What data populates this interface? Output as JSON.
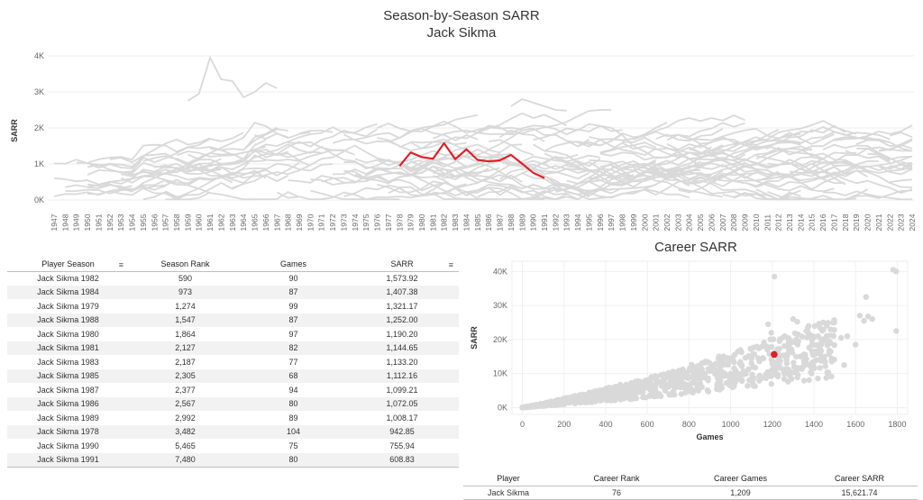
{
  "header": {
    "title": "Season-by-Season SARR",
    "subtitle": "Jack Sikma"
  },
  "line_chart": {
    "ylabel": "SARR",
    "years": [
      1947,
      1948,
      1949,
      1950,
      1951,
      1952,
      1953,
      1954,
      1955,
      1956,
      1957,
      1958,
      1959,
      1960,
      1961,
      1962,
      1963,
      1964,
      1965,
      1966,
      1967,
      1968,
      1969,
      1970,
      1971,
      1972,
      1973,
      1974,
      1975,
      1976,
      1977,
      1978,
      1979,
      1980,
      1981,
      1982,
      1983,
      1984,
      1985,
      1986,
      1987,
      1988,
      1989,
      1990,
      1991,
      1992,
      1993,
      1994,
      1995,
      1996,
      1997,
      1998,
      1999,
      2000,
      2001,
      2002,
      2003,
      2004,
      2005,
      2006,
      2007,
      2008,
      2009,
      2010,
      2011,
      2012,
      2013,
      2014,
      2015,
      2016,
      2017,
      2018,
      2019,
      2020,
      2021,
      2022,
      2023,
      2024
    ],
    "ytick_labels": [
      "0K",
      "1K",
      "2K",
      "3K",
      "4K"
    ],
    "highlight_color": "#e0202a",
    "background_color": "#d9d9d9"
  },
  "season_table": {
    "headers": [
      "Player Season",
      "Season Rank",
      "Games",
      "SARR"
    ],
    "sort_icon": "sort-icon",
    "rows": [
      [
        "Jack Sikma 1982",
        "590",
        "90",
        "1,573.92"
      ],
      [
        "Jack Sikma 1984",
        "973",
        "87",
        "1,407.38"
      ],
      [
        "Jack Sikma 1979",
        "1,274",
        "99",
        "1,321.17"
      ],
      [
        "Jack Sikma 1988",
        "1,547",
        "87",
        "1,252.00"
      ],
      [
        "Jack Sikma 1980",
        "1,864",
        "97",
        "1,190.20"
      ],
      [
        "Jack Sikma 1981",
        "2,127",
        "82",
        "1,144.65"
      ],
      [
        "Jack Sikma 1983",
        "2,187",
        "77",
        "1,133.20"
      ],
      [
        "Jack Sikma 1985",
        "2,305",
        "68",
        "1,112.16"
      ],
      [
        "Jack Sikma 1987",
        "2,377",
        "94",
        "1,099.21"
      ],
      [
        "Jack Sikma 1986",
        "2,567",
        "80",
        "1,072.05"
      ],
      [
        "Jack Sikma 1989",
        "2,992",
        "89",
        "1,008.17"
      ],
      [
        "Jack Sikma 1978",
        "3,482",
        "104",
        "942.85"
      ],
      [
        "Jack Sikma 1990",
        "5,465",
        "75",
        "755.94"
      ],
      [
        "Jack Sikma 1991",
        "7,480",
        "80",
        "608.83"
      ]
    ]
  },
  "career_chart": {
    "title": "Career SARR",
    "xlabel": "Games",
    "ylabel": "SARR",
    "xtick_labels": [
      "0",
      "200",
      "400",
      "600",
      "800",
      "1000",
      "1200",
      "1400",
      "1600",
      "1800"
    ],
    "ytick_labels": [
      "0K",
      "10K",
      "20K",
      "30K",
      "40K"
    ],
    "highlight_point": {
      "games": 1209,
      "sarr": 15621.74
    }
  },
  "career_table": {
    "headers": [
      "Player",
      "Career Rank",
      "Career Games",
      "Career SARR"
    ],
    "rows": [
      [
        "Jack Sikma",
        "76",
        "1,209",
        "15,621.74"
      ]
    ]
  },
  "chart_data": [
    {
      "type": "line",
      "title": "Season-by-Season SARR",
      "subtitle": "Jack Sikma",
      "ylabel": "SARR",
      "ylim": [
        0,
        4000
      ],
      "grid": true,
      "series": [
        {
          "name": "Jack Sikma",
          "x": [
            1978,
            1979,
            1980,
            1981,
            1982,
            1983,
            1984,
            1985,
            1986,
            1987,
            1988,
            1989,
            1990,
            1991
          ],
          "values": [
            942.85,
            1321.17,
            1190.2,
            1144.65,
            1573.92,
            1133.2,
            1407.38,
            1112.16,
            1072.05,
            1099.21,
            1252.0,
            1008.17,
            755.94,
            608.83
          ]
        }
      ]
    },
    {
      "type": "scatter",
      "title": "Career SARR",
      "xlabel": "Games",
      "ylabel": "SARR",
      "xlim": [
        -50,
        1850
      ],
      "ylim": [
        -2000,
        43000
      ],
      "grid": true,
      "highlight": {
        "x": 1209,
        "y": 15621.74
      }
    }
  ]
}
